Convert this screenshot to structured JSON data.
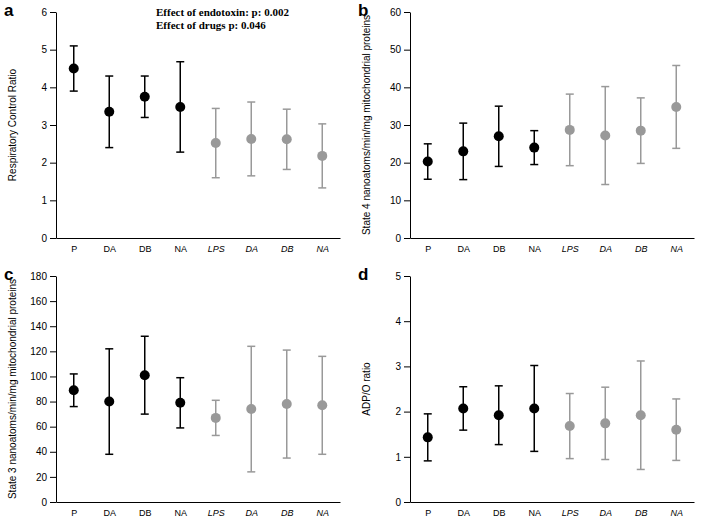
{
  "chart_data": [
    {
      "type": "errorbar",
      "title": "a",
      "y_label": "Respiratory Control Ratio",
      "annotations": [
        "Effect of endotoxin: p: 0.002",
        "Effect of drugs p: 0.046"
      ],
      "categories": [
        "P",
        "DA",
        "DB",
        "NA",
        "LPS",
        "DA",
        "DB",
        "NA"
      ],
      "values": [
        4.5,
        3.35,
        3.75,
        3.48,
        2.52,
        2.63,
        2.62,
        2.18
      ],
      "errors": [
        0.6,
        0.95,
        0.55,
        1.2,
        0.92,
        0.98,
        0.8,
        0.85
      ],
      "colors": [
        "#000000",
        "#000000",
        "#000000",
        "#000000",
        "#999999",
        "#999999",
        "#999999",
        "#999999"
      ],
      "ylim": [
        0,
        6
      ],
      "yticks": [
        0,
        1,
        2,
        3,
        4,
        5,
        6
      ]
    },
    {
      "type": "errorbar",
      "title": "b",
      "y_label": "State 4 nanoatoms/min/mg mitochondrial proteins",
      "categories": [
        "P",
        "DA",
        "DB",
        "NA",
        "LPS",
        "DA",
        "DB",
        "NA"
      ],
      "values": [
        20.3,
        23,
        27,
        24,
        28.7,
        27.2,
        28.5,
        34.8
      ],
      "errors": [
        4.7,
        7.5,
        8,
        4.5,
        9.5,
        13,
        8.7,
        11
      ],
      "colors": [
        "#000000",
        "#000000",
        "#000000",
        "#000000",
        "#999999",
        "#999999",
        "#999999",
        "#999999"
      ],
      "ylim": [
        0,
        60
      ],
      "yticks": [
        0,
        10,
        20,
        30,
        40,
        50,
        60
      ]
    },
    {
      "type": "errorbar",
      "title": "c",
      "y_label": "State 3 nanoatoms/min/mg mitochondrial proteins",
      "categories": [
        "P",
        "DA",
        "DB",
        "NA",
        "LPS",
        "DA",
        "DB",
        "NA"
      ],
      "values": [
        89,
        80,
        101,
        79,
        67,
        74,
        78,
        77
      ],
      "errors": [
        13,
        42,
        31,
        20,
        14,
        50,
        43,
        39
      ],
      "colors": [
        "#000000",
        "#000000",
        "#000000",
        "#000000",
        "#999999",
        "#999999",
        "#999999",
        "#999999"
      ],
      "ylim": [
        0,
        180
      ],
      "yticks": [
        0,
        20,
        40,
        60,
        80,
        100,
        120,
        140,
        160,
        180
      ]
    },
    {
      "type": "errorbar",
      "title": "d",
      "y_label": "ADP/O ratio",
      "categories": [
        "P",
        "DA",
        "DB",
        "NA",
        "LPS",
        "DA",
        "DB",
        "NA"
      ],
      "values": [
        1.43,
        2.07,
        1.92,
        2.07,
        1.68,
        1.74,
        1.92,
        1.6
      ],
      "errors": [
        0.52,
        0.48,
        0.65,
        0.95,
        0.72,
        0.8,
        1.2,
        0.68
      ],
      "colors": [
        "#000000",
        "#000000",
        "#000000",
        "#000000",
        "#999999",
        "#999999",
        "#999999",
        "#999999"
      ],
      "ylim": [
        0,
        5
      ],
      "yticks": [
        0,
        1,
        2,
        3,
        4,
        5
      ]
    }
  ]
}
